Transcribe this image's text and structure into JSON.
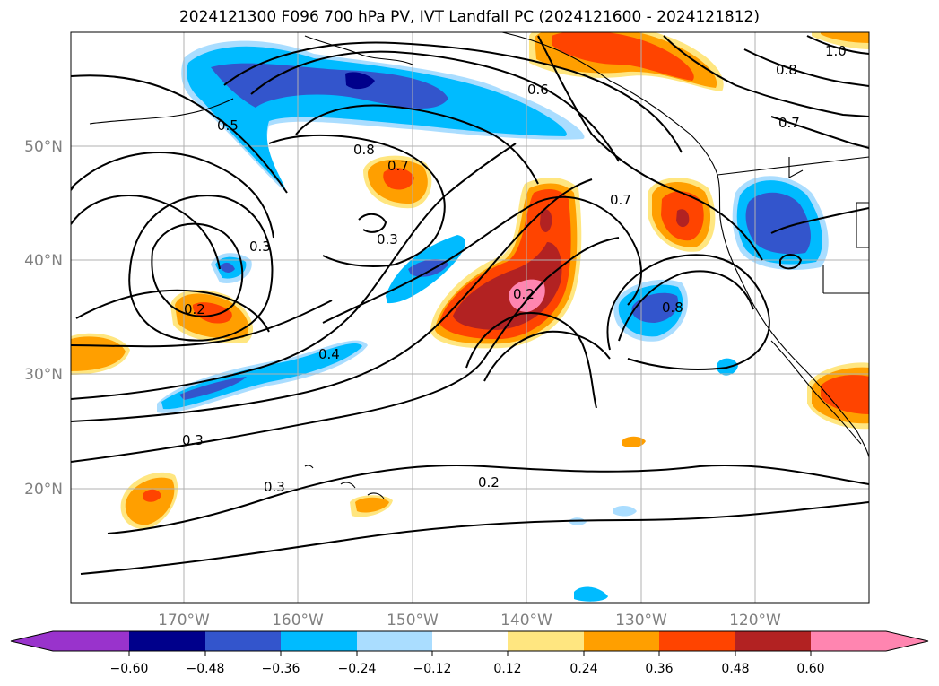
{
  "title": "2024121300 F096 700 hPa PV, IVT Landfall PC (2024121600 - 2024121812)",
  "lat_labels": [
    "50°N",
    "40°N",
    "30°N",
    "20°N"
  ],
  "lon_labels": [
    "170°W",
    "160°W",
    "150°W",
    "140°W",
    "130°W",
    "120°W"
  ],
  "contour_labels": [
    "1.0",
    "0.8",
    "0.6",
    "0.5",
    "0.8",
    "0.7",
    "0.7",
    "0.3",
    "0.3",
    "0.2",
    "0.2",
    "0.4",
    "0.8",
    "0.3",
    "0.3",
    "0.2",
    "0.7"
  ],
  "colorbar": {
    "ticks": [
      "−0.60",
      "−0.48",
      "−0.36",
      "−0.24",
      "−0.12",
      "0.12",
      "0.24",
      "0.36",
      "0.48",
      "0.60"
    ],
    "colors": [
      "#9933cc",
      "#00008b",
      "#3355cc",
      "#00bbff",
      "#aaddff",
      "#ffffff",
      "#ffe680",
      "#ff9f00",
      "#ff4400",
      "#b22222",
      "#ff85b0"
    ]
  },
  "colors": {
    "grid": "#b0b0b0",
    "blue_dark": "#00008b",
    "blue_mid": "#3355cc",
    "blue_light": "#00bbff",
    "blue_pale": "#aaddff",
    "yellow": "#ffe680",
    "orange": "#ff9f00",
    "red_orange": "#ff4400",
    "dark_red": "#b22222",
    "pink": "#ff85b0"
  }
}
